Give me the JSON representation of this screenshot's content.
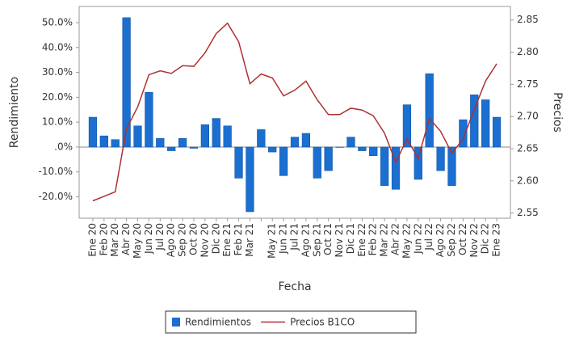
{
  "chart_data": {
    "type": "bar",
    "categories": [
      "Ene 20",
      "Feb 20",
      "Mar 20",
      "Abr 20",
      "May 20",
      "Jun 20",
      "Jul 20",
      "Ago 20",
      "Sep 20",
      "Oct 20",
      "Nov 20",
      "Dic 20",
      "Ene 21",
      "Feb 21",
      "Mar 21",
      null,
      "May 21",
      "Jun 21",
      "Jul 21",
      "Ago 21",
      "Sep 21",
      "Oct 21",
      "Nov 21",
      "Dic 21",
      "Ene 22",
      "Feb 22",
      "Mar 22",
      "Abr 22",
      "May 22",
      "Jun 22",
      "Jul 22",
      "Ago 22",
      "Sep 22",
      "Oct 22",
      "Nov 22",
      "Dic 22",
      "Ene 23"
    ],
    "x_label": "Fecha",
    "y_label": "Rendimiento",
    "y2_label": "Precios",
    "series": [
      {
        "name": "Rendimientos",
        "type": "bar",
        "color": "#1a6fd0",
        "values": [
          12,
          4.5,
          3,
          52,
          8.5,
          22,
          3.5,
          -1.5,
          3.5,
          -0.5,
          9,
          11.5,
          8.5,
          -12.5,
          -26,
          7,
          -2,
          -11.5,
          4,
          5.5,
          -12.5,
          -9.5,
          0,
          4,
          -1.5,
          -3.5,
          -15.5,
          -17,
          17,
          -13,
          29.5,
          -9.5,
          -15.5,
          11,
          21,
          19,
          12
        ]
      },
      {
        "name": "Precios B1CO",
        "type": "line",
        "axis": "y2",
        "color": "#b03030",
        "values": [
          2.569,
          2.576,
          2.583,
          2.681,
          2.715,
          2.765,
          2.771,
          2.767,
          2.779,
          2.778,
          2.799,
          2.829,
          2.845,
          2.816,
          2.751,
          2.766,
          2.76,
          2.732,
          2.741,
          2.755,
          2.726,
          2.703,
          2.703,
          2.713,
          2.71,
          2.701,
          2.674,
          2.629,
          2.665,
          2.635,
          2.697,
          2.677,
          2.643,
          2.665,
          2.711,
          2.755,
          2.782
        ]
      }
    ],
    "ylim": [
      -28.6,
      56.5
    ],
    "yticks": [
      {
        "value": 50,
        "label": "50.0%"
      },
      {
        "value": 40,
        "label": "40.0%"
      },
      {
        "value": 30,
        "label": "30.0%"
      },
      {
        "value": 20,
        "label": "20.0%"
      },
      {
        "value": 10,
        "label": "10.0%"
      },
      {
        "value": 0,
        "label": ".0%"
      },
      {
        "value": -10,
        "label": "-10.0%"
      },
      {
        "value": -20,
        "label": "-20.0%"
      }
    ],
    "y2lim": [
      2.542,
      2.871
    ],
    "y2ticks": [
      2.85,
      {
        "value": 2.8,
        "label": "2.80"
      },
      2.75,
      {
        "value": 2.7,
        "label": "2.70"
      },
      2.65,
      {
        "value": 2.6,
        "label": "2.60"
      },
      2.55
    ],
    "legend": "bottom"
  }
}
